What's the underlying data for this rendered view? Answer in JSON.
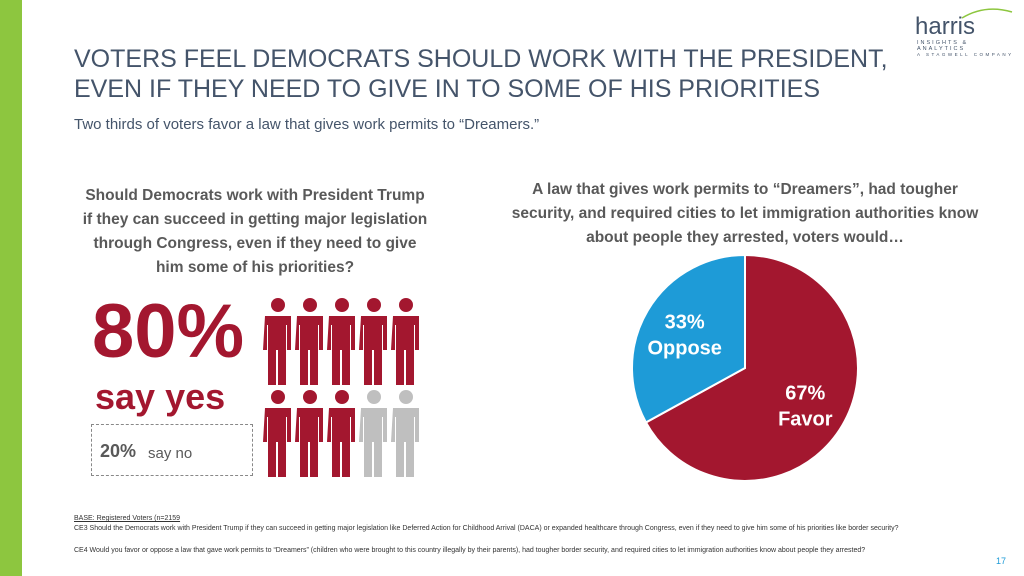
{
  "header": {
    "title_lines": [
      "VOTERS FEEL DEMOCRATS SHOULD WORK WITH THE PRESIDENT,",
      "EVEN IF THEY NEED TO GIVE IN TO SOME OF HIS PRIORITIES"
    ],
    "subtitle": "Two thirds of voters favor a law that gives work permits to “Dreamers.”"
  },
  "logo": {
    "name": "harris",
    "tagline": "INSIGHTS & ANALYTICS",
    "company": "A STAGWELL COMPANY"
  },
  "left_panel": {
    "question": "Should Democrats work with President Trump if they can succeed in getting major legislation through Congress, even if they need to give him some of his priorities?",
    "yes": {
      "value": 80,
      "label": "80%"
    },
    "yes_text": "say yes",
    "no": {
      "value": 20,
      "label": "20%"
    },
    "no_text": "say no"
  },
  "chart_data": {
    "type": "pie",
    "title": "A law that gives work permits to “Dreamers”, had tougher security, and required cities to let immigration authorities know about people they arrested, voters would…",
    "categories": [
      "Favor",
      "Oppose"
    ],
    "values": [
      67,
      33
    ],
    "value_labels": [
      "67%",
      "33%"
    ],
    "colors": [
      "#a3172f",
      "#1e9bd7"
    ]
  },
  "footer": {
    "base": "BASE: Registered Voters (n=2159",
    "notes": [
      "CE3 Should the Democrats work with President Trump if they can succeed in getting major legislation like Deferred Action for Childhood Arrival (DACA) or expanded healthcare through Congress, even if they need to give him some of his priorities like border security?",
      "CE4 Would you favor or oppose a law that gave work permits to “Dreamers” (children who were brought to this country illegally by their parents), had tougher border security, and required cities to let immigration authorities know about people they arrested?"
    ]
  },
  "page_number": "17"
}
